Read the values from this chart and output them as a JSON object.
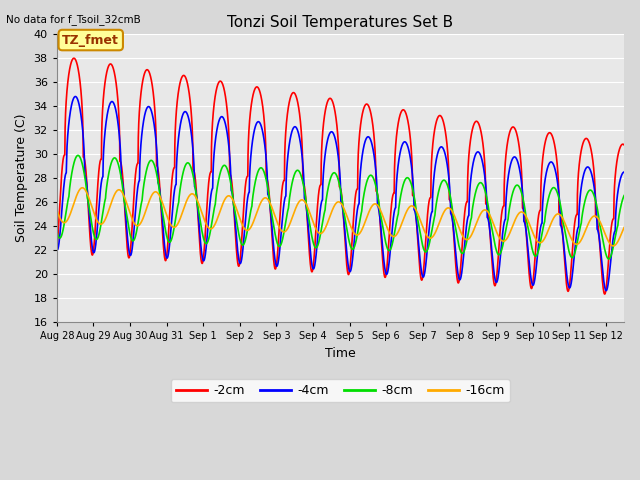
{
  "title": "Tonzi Soil Temperatures Set B",
  "xlabel": "Time",
  "ylabel": "Soil Temperature (C)",
  "note": "No data for f_Tsoil_32cmB",
  "legend_label": "TZ_fmet",
  "ylim": [
    16,
    40
  ],
  "yticks": [
    16,
    18,
    20,
    22,
    24,
    26,
    28,
    30,
    32,
    34,
    36,
    38,
    40
  ],
  "series_colors": {
    "-2cm": "#ff0000",
    "-4cm": "#0000ff",
    "-8cm": "#00dd00",
    "-16cm": "#ffaa00"
  },
  "series_labels": [
    "-2cm",
    "-4cm",
    "-8cm",
    "-16cm"
  ],
  "bg_color": "#e8e8e8",
  "fig_bg_color": "#d8d8d8",
  "n_days": 15.5,
  "xtick_labels": [
    "Aug 28",
    "Aug 29",
    "Aug 30",
    "Aug 31",
    "Sep 1",
    "Sep 2",
    "Sep 3",
    "Sep 4",
    "Sep 5",
    "Sep 6",
    "Sep 7",
    "Sep 8",
    "Sep 9",
    "Sep 10",
    "Sep 11",
    "Sep 12"
  ]
}
